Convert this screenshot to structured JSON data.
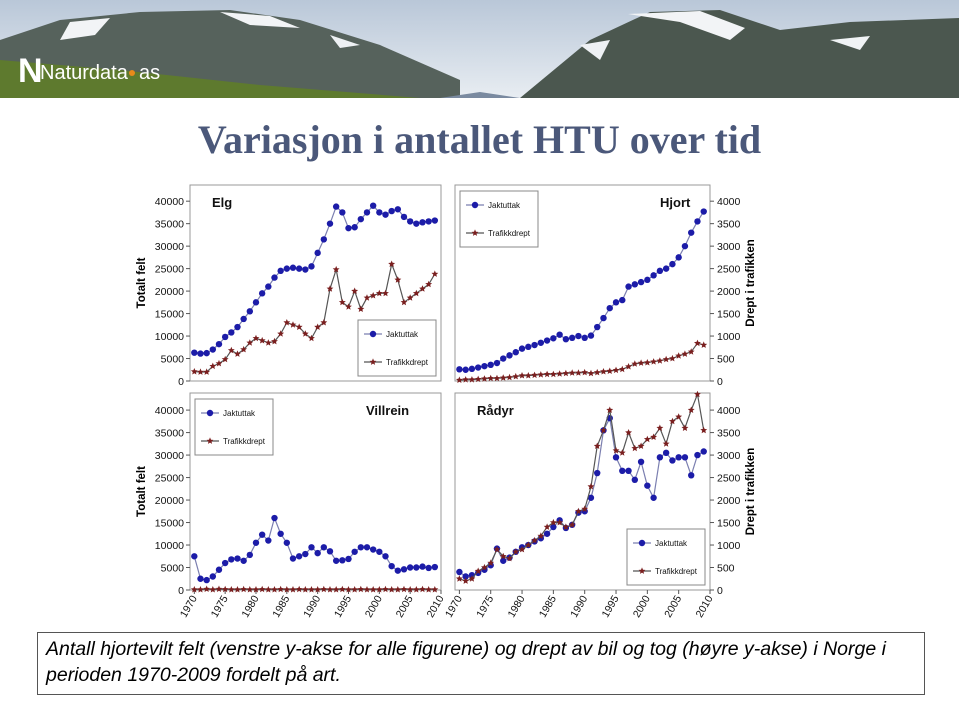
{
  "header": {
    "logo": "Naturdata",
    "logo_suffix": "as"
  },
  "title": "Variasjon i antallet HTU over tid",
  "caption": "Antall hjortevilt felt (venstre y-akse for alle figurene) og drept av bil og tog (høyre y-akse) i Norge i perioden 1970-2009 fordelt på art.",
  "chart_data": [
    {
      "type": "line",
      "title": "Elg",
      "ylabel": "Totalt felt",
      "legend_loc": "lower right",
      "xlim": [
        1969.3,
        2010
      ],
      "ylim": [
        0,
        43600
      ],
      "y2lim": [
        0,
        4360
      ],
      "yticks": [
        0,
        5000,
        10000,
        15000,
        20000,
        25000,
        30000,
        35000,
        40000
      ],
      "x": [
        1970,
        1971,
        1972,
        1973,
        1974,
        1975,
        1976,
        1977,
        1978,
        1979,
        1980,
        1981,
        1982,
        1983,
        1984,
        1985,
        1986,
        1987,
        1988,
        1989,
        1990,
        1991,
        1992,
        1993,
        1994,
        1995,
        1996,
        1997,
        1998,
        1999,
        2000,
        2001,
        2002,
        2003,
        2004,
        2005,
        2006,
        2007,
        2008,
        2009
      ],
      "series": [
        {
          "name": "Jaktuttak",
          "color": "#1c1ca8",
          "values": [
            6300,
            6100,
            6200,
            7000,
            8200,
            9800,
            10800,
            12000,
            13800,
            15500,
            17500,
            19500,
            21000,
            23000,
            24500,
            25000,
            25200,
            25000,
            24800,
            25500,
            28500,
            31500,
            35000,
            38800,
            37500,
            34000,
            34200,
            36000,
            37500,
            39000,
            37500,
            37000,
            37800,
            38200,
            36500,
            35500,
            35000,
            35300,
            35500,
            35700
          ]
        },
        {
          "name": "Trafikkdrept",
          "color": "#7a1f1f",
          "axis": "y2",
          "values": [
            210,
            200,
            200,
            330,
            390,
            480,
            680,
            600,
            700,
            850,
            950,
            900,
            850,
            880,
            1050,
            1300,
            1250,
            1200,
            1050,
            950,
            1200,
            1300,
            2050,
            2480,
            1750,
            1650,
            2000,
            1600,
            1850,
            1900,
            1950,
            1950,
            2600,
            2250,
            1750,
            1850,
            1950,
            2050,
            2150,
            2380
          ]
        }
      ]
    },
    {
      "type": "line",
      "title": "Hjort",
      "y2label": "Drept i trafikken",
      "legend_loc": "upper left",
      "xlim": [
        1969.3,
        2010
      ],
      "ylim": [
        0,
        43600
      ],
      "y2lim": [
        0,
        4360
      ],
      "y2ticks": [
        0,
        500,
        1000,
        1500,
        2000,
        2500,
        3000,
        3500,
        4000
      ],
      "x": [
        1970,
        1971,
        1972,
        1973,
        1974,
        1975,
        1976,
        1977,
        1978,
        1979,
        1980,
        1981,
        1982,
        1983,
        1984,
        1985,
        1986,
        1987,
        1988,
        1989,
        1990,
        1991,
        1992,
        1993,
        1994,
        1995,
        1996,
        1997,
        1998,
        1999,
        2000,
        2001,
        2002,
        2003,
        2004,
        2005,
        2006,
        2007,
        2008,
        2009
      ],
      "series": [
        {
          "name": "Jaktuttak",
          "color": "#1c1ca8",
          "values": [
            2600,
            2500,
            2700,
            3000,
            3300,
            3600,
            4000,
            5000,
            5700,
            6400,
            7200,
            7600,
            8000,
            8500,
            9000,
            9500,
            10300,
            9300,
            9600,
            10000,
            9600,
            10100,
            12000,
            14000,
            16200,
            17500,
            18000,
            21000,
            21500,
            22000,
            22500,
            23500,
            24500,
            25000,
            26000,
            27500,
            30000,
            33000,
            35500,
            37700
          ]
        },
        {
          "name": "Trafikkdrept",
          "color": "#7a1f1f",
          "axis": "y2",
          "values": [
            20,
            30,
            30,
            40,
            50,
            60,
            60,
            70,
            80,
            100,
            120,
            120,
            130,
            140,
            150,
            150,
            160,
            170,
            180,
            180,
            190,
            170,
            190,
            210,
            220,
            240,
            260,
            320,
            380,
            400,
            410,
            430,
            450,
            480,
            500,
            560,
            600,
            650,
            840,
            800
          ]
        }
      ]
    },
    {
      "type": "line",
      "title": "Villrein",
      "ylabel": "Totalt felt",
      "legend_loc": "upper left",
      "xlim": [
        1969.3,
        2010
      ],
      "ylim": [
        0,
        43800
      ],
      "y2lim": [
        0,
        4380
      ],
      "yticks": [
        0,
        5000,
        10000,
        15000,
        20000,
        25000,
        30000,
        35000,
        40000
      ],
      "xticks": [
        1970,
        1975,
        1980,
        1985,
        1990,
        1995,
        2000,
        2005,
        2010
      ],
      "x": [
        1970,
        1971,
        1972,
        1973,
        1974,
        1975,
        1976,
        1977,
        1978,
        1979,
        1980,
        1981,
        1982,
        1983,
        1984,
        1985,
        1986,
        1987,
        1988,
        1989,
        1990,
        1991,
        1992,
        1993,
        1994,
        1995,
        1996,
        1997,
        1998,
        1999,
        2000,
        2001,
        2002,
        2003,
        2004,
        2005,
        2006,
        2007,
        2008,
        2009
      ],
      "series": [
        {
          "name": "Jaktuttak",
          "color": "#1c1ca8",
          "values": [
            7500,
            2500,
            2200,
            3000,
            4500,
            6000,
            6800,
            7000,
            6500,
            7800,
            10500,
            12300,
            11000,
            16000,
            12500,
            10500,
            7000,
            7500,
            8000,
            9500,
            8200,
            9500,
            8600,
            6500,
            6600,
            6900,
            8500,
            9500,
            9500,
            9000,
            8500,
            7500,
            5300,
            4300,
            4600,
            5000,
            5000,
            5200,
            4900,
            5100
          ]
        },
        {
          "name": "Trafikkdrept",
          "color": "#7a1f1f",
          "axis": "y2",
          "values": [
            10,
            10,
            20,
            10,
            20,
            15,
            10,
            10,
            15,
            10,
            10,
            15,
            10,
            10,
            15,
            10,
            10,
            15,
            10,
            10,
            10,
            15,
            10,
            10,
            15,
            10,
            10,
            15,
            10,
            10,
            10,
            15,
            10,
            10,
            15,
            10,
            10,
            15,
            10,
            10
          ]
        }
      ]
    },
    {
      "type": "line",
      "title": "Rådyr",
      "y2label": "Drept i trafikken",
      "legend_loc": "lower right",
      "xlim": [
        1969.3,
        2010
      ],
      "ylim": [
        0,
        43800
      ],
      "y2lim": [
        0,
        4380
      ],
      "y2ticks": [
        0,
        500,
        1000,
        1500,
        2000,
        2500,
        3000,
        3500,
        4000
      ],
      "xticks": [
        1970,
        1975,
        1980,
        1985,
        1990,
        1995,
        2000,
        2005,
        2010
      ],
      "x": [
        1970,
        1971,
        1972,
        1973,
        1974,
        1975,
        1976,
        1977,
        1978,
        1979,
        1980,
        1981,
        1982,
        1983,
        1984,
        1985,
        1986,
        1987,
        1988,
        1989,
        1990,
        1991,
        1992,
        1993,
        1994,
        1995,
        1996,
        1997,
        1998,
        1999,
        2000,
        2001,
        2002,
        2003,
        2004,
        2005,
        2006,
        2007,
        2008,
        2009
      ],
      "series": [
        {
          "name": "Jaktuttak",
          "color": "#1c1ca8",
          "values": [
            4000,
            3000,
            3300,
            3800,
            4500,
            5500,
            9200,
            6500,
            7200,
            8500,
            9500,
            10000,
            10800,
            11500,
            12500,
            14000,
            15500,
            13800,
            14500,
            17200,
            17500,
            20500,
            26000,
            35500,
            38200,
            29500,
            26500,
            26500,
            24500,
            28500,
            23200,
            20500,
            29500,
            30500,
            28800,
            29500,
            29500,
            25500,
            30000,
            30800
          ]
        },
        {
          "name": "Trafikkdrept",
          "color": "#7a1f1f",
          "axis": "y2",
          "values": [
            250,
            200,
            250,
            420,
            500,
            600,
            900,
            750,
            700,
            850,
            900,
            1000,
            1100,
            1200,
            1400,
            1500,
            1500,
            1400,
            1450,
            1750,
            1800,
            2300,
            3200,
            3550,
            4000,
            3100,
            3050,
            3500,
            3150,
            3200,
            3350,
            3400,
            3600,
            3250,
            3750,
            3850,
            3600,
            4000,
            4350,
            3550
          ]
        }
      ]
    }
  ]
}
